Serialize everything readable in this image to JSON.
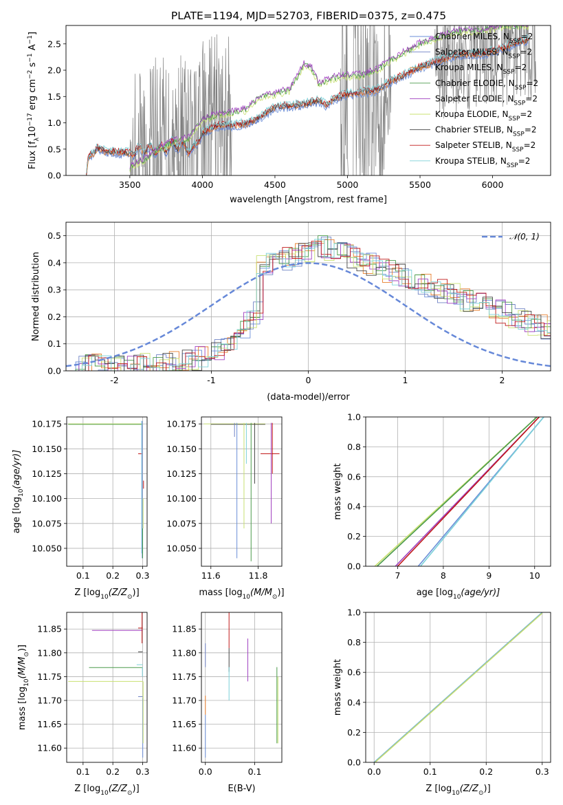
{
  "title": "PLATE=1194, MJD=52703, FIBERID=0375, z=0.475",
  "series_colors": {
    "Chabrier MILES": "#6a8ed8",
    "Salpeter MILES": "#6f82c4",
    "Kroupa MILES": "#e87d2a",
    "Chabrier ELODIE": "#4a9a4a",
    "Salpeter ELODIE": "#a040c0",
    "Kroupa ELODIE": "#c8e070",
    "Chabrier STELIB": "#444444",
    "Salpeter STELIB": "#c01818",
    "Kroupa STELIB": "#7ad0d8",
    "data": "#808080",
    "gaussian": "#6688d8"
  },
  "chart_data": [
    {
      "type": "line",
      "name": "spectrum",
      "xlabel": "wavelength [Angstrom, rest frame]",
      "ylabel": "Flux [f",
      "ylabel_sub": "λ",
      "ylabel_rest": "10",
      "ylabel_sup1": "−17",
      "ylabel_mid": " erg cm",
      "ylabel_sup2": "−2",
      "ylabel_mid2": " s",
      "ylabel_sup3": "−1",
      "ylabel_end": " A",
      "ylabel_sup4": "−1",
      "ylabel_close": "]",
      "xlim": [
        3060,
        6400
      ],
      "ylim": [
        0,
        2.85
      ],
      "xticks": [
        3500,
        4000,
        4500,
        5000,
        5500,
        6000
      ],
      "yticks": [
        0.0,
        0.5,
        1.0,
        1.5,
        2.0,
        2.5
      ],
      "legend_position": "top-right",
      "legend": [
        {
          "label": "Chabrier MILES, N",
          "sub": "SSP",
          "tail": "=2",
          "color_key": "Chabrier MILES"
        },
        {
          "label": "Salpeter MILES, N",
          "sub": "SSP",
          "tail": "=2",
          "color_key": "Salpeter MILES"
        },
        {
          "label": "Kroupa MILES, N",
          "sub": "SSP",
          "tail": "=2",
          "color_key": "Kroupa MILES"
        },
        {
          "label": "Chabrier ELODIE, N",
          "sub": "SSP",
          "tail": "=2",
          "color_key": "Chabrier ELODIE"
        },
        {
          "label": "Salpeter ELODIE, N",
          "sub": "SSP",
          "tail": "=2",
          "color_key": "Salpeter ELODIE"
        },
        {
          "label": "Kroupa ELODIE, N",
          "sub": "SSP",
          "tail": "=2",
          "color_key": "Kroupa ELODIE"
        },
        {
          "label": "Chabrier STELIB, N",
          "sub": "SSP",
          "tail": "=2",
          "color_key": "Chabrier STELIB"
        },
        {
          "label": "Salpeter STELIB, N",
          "sub": "SSP",
          "tail": "=2",
          "color_key": "Salpeter STELIB"
        },
        {
          "label": "Kroupa STELIB, N",
          "sub": "SSP",
          "tail": "=2",
          "color_key": "Kroupa STELIB"
        }
      ],
      "model_trend": [
        [
          3200,
          0.05
        ],
        [
          3215,
          0.36
        ],
        [
          3250,
          0.42
        ],
        [
          3280,
          0.52
        ],
        [
          3320,
          0.46
        ],
        [
          3400,
          0.44
        ],
        [
          3500,
          0.42
        ],
        [
          3600,
          0.5
        ],
        [
          3700,
          0.48
        ],
        [
          3800,
          0.58
        ],
        [
          3880,
          0.55
        ],
        [
          3930,
          0.45
        ],
        [
          3970,
          0.62
        ],
        [
          4000,
          0.8
        ],
        [
          4100,
          0.95
        ],
        [
          4200,
          0.95
        ],
        [
          4300,
          0.98
        ],
        [
          4400,
          1.1
        ],
        [
          4500,
          1.3
        ],
        [
          4600,
          1.32
        ],
        [
          4700,
          1.35
        ],
        [
          4800,
          1.42
        ],
        [
          4860,
          1.33
        ],
        [
          4900,
          1.45
        ],
        [
          5000,
          1.55
        ],
        [
          5100,
          1.58
        ],
        [
          5200,
          1.62
        ],
        [
          5300,
          1.78
        ],
        [
          5400,
          1.92
        ],
        [
          5500,
          2.05
        ],
        [
          5600,
          2.15
        ],
        [
          5700,
          2.25
        ],
        [
          5800,
          2.3
        ],
        [
          5900,
          2.3
        ],
        [
          6000,
          2.35
        ],
        [
          6100,
          2.45
        ],
        [
          6200,
          2.55
        ],
        [
          6250,
          2.58
        ]
      ],
      "elodie_trend": [
        [
          3500,
          0.15
        ],
        [
          3600,
          0.3
        ],
        [
          3700,
          0.5
        ],
        [
          3800,
          0.65
        ],
        [
          3900,
          0.7
        ],
        [
          4000,
          1.05
        ],
        [
          4100,
          1.15
        ],
        [
          4200,
          1.2
        ],
        [
          4300,
          1.25
        ],
        [
          4400,
          1.5
        ],
        [
          4500,
          1.55
        ],
        [
          4600,
          1.62
        ],
        [
          4700,
          2.1
        ],
        [
          4750,
          2.05
        ],
        [
          4800,
          1.75
        ],
        [
          4900,
          1.85
        ],
        [
          5000,
          1.9
        ],
        [
          5100,
          1.9
        ],
        [
          5200,
          2.0
        ],
        [
          5300,
          2.2
        ],
        [
          5400,
          2.35
        ],
        [
          5500,
          2.5
        ],
        [
          5600,
          2.6
        ],
        [
          5700,
          2.7
        ],
        [
          5800,
          2.75
        ],
        [
          5900,
          2.75
        ],
        [
          6000,
          2.8
        ],
        [
          6100,
          2.85
        ],
        [
          6200,
          2.85
        ]
      ]
    },
    {
      "type": "line",
      "name": "residual-histogram",
      "xlabel": "(data-model)/error",
      "ylabel": "Normed distribution",
      "xlim": [
        -2.5,
        2.5
      ],
      "ylim": [
        0,
        0.55
      ],
      "xticks": [
        -2,
        -1,
        0,
        1,
        2
      ],
      "yticks": [
        0.0,
        0.1,
        0.2,
        0.3,
        0.4,
        0.5
      ],
      "legend_position": "top-right",
      "legend_label": "𝒩(0, 1)",
      "hist_profile": [
        0.02,
        0.02,
        0.02,
        0.02,
        0.02,
        0.02,
        0.02,
        0.02,
        0.02,
        0.02,
        0.02,
        0.02,
        0.02,
        0.02,
        0.02,
        0.02,
        0.02,
        0.025,
        0.03,
        0.035,
        0.04,
        0.05,
        0.06,
        0.08,
        0.1,
        0.11,
        0.13,
        0.15,
        0.18,
        0.2,
        0.22,
        0.25,
        0.28,
        0.3,
        0.33,
        0.36,
        0.38,
        0.4,
        0.42,
        0.44,
        0.48,
        0.44,
        0.45,
        0.4,
        0.43,
        0.42,
        0.4,
        0.38,
        0.36,
        0.34,
        0.36,
        0.38,
        0.35,
        0.35,
        0.33,
        0.32,
        0.3,
        0.28,
        0.26,
        0.25,
        0.24,
        0.23,
        0.2,
        0.2,
        0.2,
        0.19,
        0.18,
        0.17,
        0.16,
        0.15,
        0.14,
        0.12
      ]
    },
    {
      "type": "scatter",
      "name": "age-vs-Z",
      "xlabel": "Z [log",
      "xlabel_sub": "10",
      "xlabel_rest": "(Z/Z",
      "xlabel_sub2": "⊙",
      "xlabel_end": ")]",
      "ylabel": "age  [log",
      "ylabel_sub": "10",
      "ylabel_rest": "(age/yr)]",
      "xlim": [
        0.045,
        0.315
      ],
      "ylim": [
        10.032,
        10.182
      ],
      "xticks": [
        0.1,
        0.2,
        0.3
      ],
      "yticks": [
        10.05,
        10.075,
        10.1,
        10.125,
        10.15,
        10.175
      ]
    },
    {
      "type": "scatter",
      "name": "age-vs-mass",
      "xlabel": "mass [log",
      "xlabel_sub": "10",
      "xlabel_rest": "(M/M",
      "xlabel_sub2": "⊙",
      "xlabel_end": ")]",
      "xlim": [
        11.56,
        11.9
      ],
      "ylim": [
        10.032,
        10.182
      ],
      "xticks": [
        11.6,
        11.8
      ],
      "yticks": [
        10.05,
        10.075,
        10.1,
        10.125,
        10.15,
        10.175
      ]
    },
    {
      "type": "line",
      "name": "cumulative-mass-vs-age",
      "xlabel": "age  [log",
      "xlabel_sub": "10",
      "xlabel_rest": "(age/yr)]",
      "ylabel": "mass weight",
      "xlim": [
        6.3,
        10.35
      ],
      "ylim": [
        0,
        1
      ],
      "xticks": [
        7,
        8,
        9,
        10
      ],
      "yticks": [
        0.0,
        0.2,
        0.4,
        0.6,
        0.8,
        1.0
      ],
      "series": [
        {
          "color_key": "Kroupa ELODIE",
          "x": [
            6.5,
            10.05
          ],
          "y": [
            0,
            1
          ]
        },
        {
          "color_key": "Chabrier ELODIE",
          "x": [
            6.55,
            10.05
          ],
          "y": [
            0,
            1
          ]
        },
        {
          "color_key": "Salpeter ELODIE",
          "x": [
            6.95,
            10.1
          ],
          "y": [
            0,
            1
          ]
        },
        {
          "color_key": "Salpeter STELIB",
          "x": [
            7.0,
            10.1
          ],
          "y": [
            0,
            1
          ]
        },
        {
          "color_key": "Chabrier MILES",
          "x": [
            7.45,
            10.2
          ],
          "y": [
            0,
            1
          ]
        },
        {
          "color_key": "Kroupa STELIB",
          "x": [
            7.5,
            10.2
          ],
          "y": [
            0,
            1
          ]
        }
      ]
    },
    {
      "type": "scatter",
      "name": "mass-vs-Z",
      "xlabel": "Z [log",
      "xlabel_sub": "10",
      "xlabel_rest": "(Z/Z",
      "xlabel_sub2": "⊙",
      "xlabel_end": ")]",
      "ylabel": "mass [log",
      "ylabel_sub": "10",
      "ylabel_rest": "(M/M",
      "ylabel_sub2": "⊙",
      "ylabel_end": ")]",
      "xlim": [
        0.045,
        0.315
      ],
      "ylim": [
        11.57,
        11.885
      ],
      "xticks": [
        0.1,
        0.2,
        0.3
      ],
      "yticks": [
        11.6,
        11.65,
        11.7,
        11.75,
        11.8,
        11.85
      ]
    },
    {
      "type": "scatter",
      "name": "mass-vs-EBV",
      "xlabel": "E(B-V)",
      "xlim": [
        -0.008,
        0.155
      ],
      "ylim": [
        11.57,
        11.885
      ],
      "xticks": [
        0.0,
        0.1
      ],
      "yticks": [
        11.6,
        11.65,
        11.7,
        11.75,
        11.8,
        11.85
      ]
    },
    {
      "type": "line",
      "name": "cumulative-mass-vs-Z",
      "xlabel": "Z [log",
      "xlabel_sub": "10",
      "xlabel_rest": "(Z/Z",
      "xlabel_sub2": "⊙",
      "xlabel_end": ")]",
      "ylabel": "mass weight",
      "xlim": [
        -0.015,
        0.315
      ],
      "ylim": [
        0,
        1
      ],
      "xticks": [
        0.0,
        0.1,
        0.2,
        0.3
      ],
      "yticks": [
        0.0,
        0.2,
        0.4,
        0.6,
        0.8,
        1.0
      ],
      "series": [
        {
          "color_key": "Kroupa STELIB",
          "x": [
            0.0,
            0.3
          ],
          "y": [
            0,
            1
          ]
        },
        {
          "color_key": "Chabrier MILES",
          "x": [
            0.0,
            0.3
          ],
          "y": [
            0,
            1
          ]
        },
        {
          "color_key": "Kroupa ELODIE",
          "x": [
            0.0,
            0.3
          ],
          "y": [
            0,
            1
          ]
        }
      ]
    }
  ]
}
